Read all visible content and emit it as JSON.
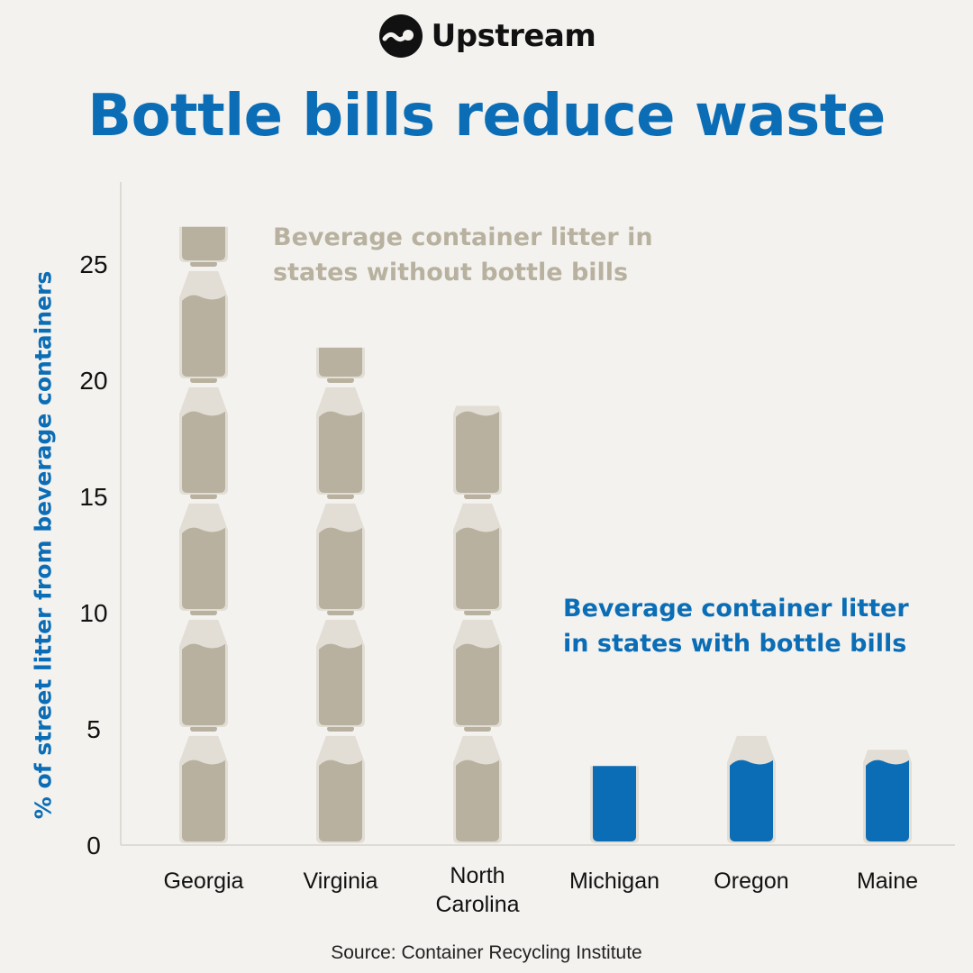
{
  "header": {
    "brand": "Upstream",
    "logo_icon": "upstream-logo-icon",
    "title": "Bottle bills reduce waste"
  },
  "colors": {
    "background": "#f3f2ef",
    "title": "#0b6db5",
    "without_bottle_bills": "#b8b19f",
    "with_bottle_bills": "#0b6db5",
    "bottle_glass": "#e2ded5",
    "axis": "#d6d3cc"
  },
  "footer": {
    "source": "Source: Container Recycling Institute"
  },
  "chart_data": {
    "type": "bar",
    "mark": "stacked bottle icons",
    "title": "Bottle bills reduce waste",
    "ylabel": "% of street litter from beverage containers",
    "xlabel": "",
    "ylim": [
      0,
      28
    ],
    "yticks": [
      0,
      5,
      10,
      15,
      20,
      25
    ],
    "grid": false,
    "categories": [
      "Georgia",
      "Virginia",
      "North Carolina",
      "Michigan",
      "Oregon",
      "Maine"
    ],
    "category_lines": [
      [
        "Georgia"
      ],
      [
        "Virginia"
      ],
      [
        "North",
        "Carolina"
      ],
      [
        "Michigan"
      ],
      [
        "Oregon"
      ],
      [
        "Maine"
      ]
    ],
    "groups": [
      {
        "name": "Beverage container litter in states without bottle bills",
        "label_lines": [
          "Beverage container litter in",
          "states without bottle bills"
        ],
        "categories": [
          "Georgia",
          "Virginia",
          "North Carolina"
        ]
      },
      {
        "name": "Beverage container litter in states with bottle bills",
        "label_lines": [
          "Beverage container litter",
          "in states with bottle bills"
        ],
        "categories": [
          "Michigan",
          "Oregon",
          "Maine"
        ]
      }
    ],
    "values": [
      26.6,
      21.4,
      18.9,
      3.4,
      4.8,
      4.1
    ]
  }
}
